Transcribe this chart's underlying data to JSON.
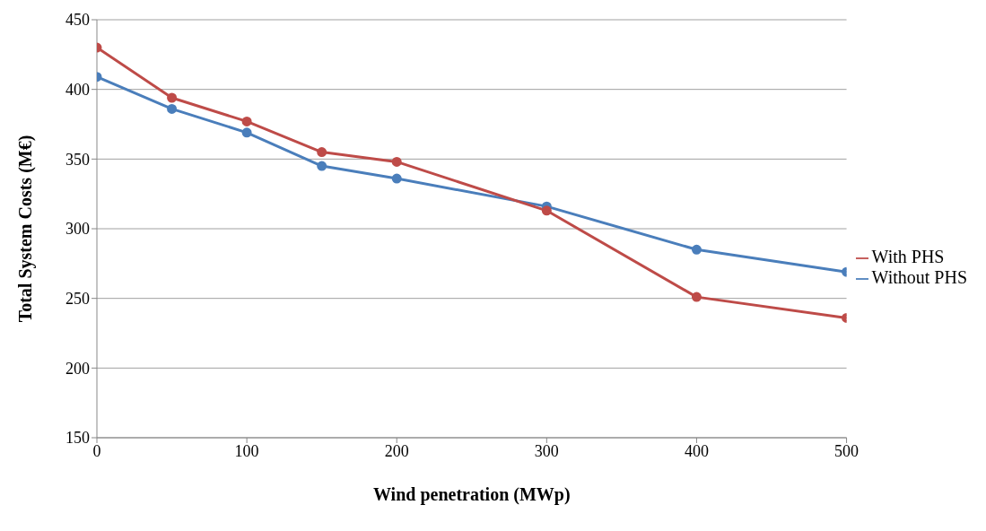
{
  "chart_data": {
    "type": "line",
    "xlabel": "Wind penetration (MWp)",
    "ylabel": "Total System Costs (M€)",
    "x": [
      0,
      50,
      100,
      150,
      200,
      300,
      400,
      500
    ],
    "series": [
      {
        "name": "Without PHS",
        "color": "#4a7ebb",
        "values": [
          409,
          386,
          369,
          345,
          336,
          316,
          285,
          269
        ]
      },
      {
        "name": "With PHS",
        "color": "#be4b48",
        "values": [
          430,
          394,
          377,
          355,
          348,
          313,
          251,
          236
        ]
      }
    ],
    "xlim": [
      0,
      500
    ],
    "xticks": [
      0,
      100,
      200,
      300,
      400,
      500
    ],
    "ylim": [
      150,
      450
    ],
    "yticks": [
      150,
      200,
      250,
      300,
      350,
      400,
      450
    ],
    "grid": "y",
    "legend": "right",
    "marker": "circle",
    "line_style": "solid"
  }
}
